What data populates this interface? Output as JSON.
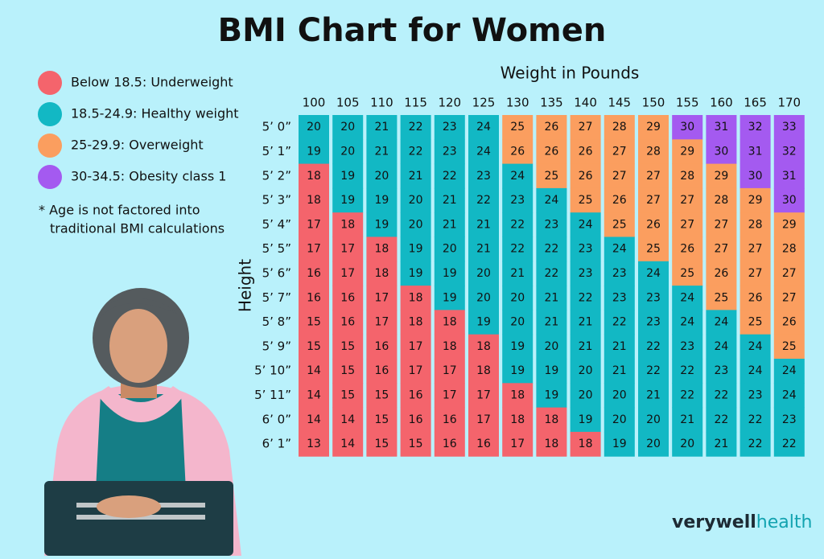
{
  "title": "BMI Chart for Women",
  "legend": [
    {
      "text": "Below 18.5: Underweight",
      "color": "#f4646c",
      "range": [
        null,
        18.5
      ]
    },
    {
      "text": "18.5-24.9: Healthy weight",
      "color": "#12b8c4",
      "range": [
        18.5,
        24.9
      ]
    },
    {
      "text": "25-29.9: Overweight",
      "color": "#fb9e5f",
      "range": [
        25,
        29.9
      ]
    },
    {
      "text": "30-34.5: Obesity class 1",
      "color": "#a45af0",
      "range": [
        30,
        34.5
      ]
    }
  ],
  "note": [
    "* Age is not factored into",
    "traditional BMI calculations"
  ],
  "table": {
    "x_label": "Weight in Pounds",
    "y_label": "Height",
    "columns": [
      100,
      105,
      110,
      115,
      120,
      125,
      130,
      135,
      140,
      145,
      150,
      155,
      160,
      165,
      170
    ],
    "rows": [
      {
        "height": "5’ 0”",
        "values": [
          20,
          20,
          21,
          22,
          23,
          24,
          25,
          26,
          27,
          28,
          29,
          30,
          31,
          32,
          33
        ]
      },
      {
        "height": "5’ 1”",
        "values": [
          19,
          20,
          21,
          22,
          23,
          24,
          26,
          26,
          26,
          27,
          28,
          29,
          30,
          31,
          32
        ]
      },
      {
        "height": "5’ 2”",
        "values": [
          18,
          19,
          20,
          21,
          22,
          23,
          24,
          25,
          26,
          27,
          27,
          28,
          29,
          30,
          31
        ]
      },
      {
        "height": "5’ 3”",
        "values": [
          18,
          19,
          19,
          20,
          21,
          22,
          23,
          24,
          25,
          26,
          27,
          27,
          28,
          29,
          30
        ]
      },
      {
        "height": "5’ 4”",
        "values": [
          17,
          18,
          19,
          20,
          21,
          21,
          22,
          23,
          24,
          25,
          26,
          27,
          27,
          28,
          29
        ]
      },
      {
        "height": "5’ 5”",
        "values": [
          17,
          17,
          18,
          19,
          20,
          21,
          22,
          22,
          23,
          24,
          25,
          26,
          27,
          27,
          28
        ]
      },
      {
        "height": "5’ 6”",
        "values": [
          16,
          17,
          18,
          19,
          19,
          20,
          21,
          22,
          23,
          23,
          24,
          25,
          26,
          27,
          27
        ]
      },
      {
        "height": "5’ 7”",
        "values": [
          16,
          16,
          17,
          18,
          19,
          20,
          20,
          21,
          22,
          23,
          23,
          24,
          25,
          26,
          27
        ]
      },
      {
        "height": "5’ 8”",
        "values": [
          15,
          16,
          17,
          18,
          18,
          19,
          20,
          21,
          21,
          22,
          23,
          24,
          24,
          25,
          26
        ]
      },
      {
        "height": "5’ 9”",
        "values": [
          15,
          15,
          16,
          17,
          18,
          18,
          19,
          20,
          21,
          21,
          22,
          23,
          24,
          24,
          25
        ]
      },
      {
        "height": "5’ 10”",
        "values": [
          14,
          15,
          16,
          17,
          17,
          18,
          19,
          19,
          20,
          21,
          22,
          22,
          23,
          24,
          24
        ]
      },
      {
        "height": "5’ 11”",
        "values": [
          14,
          15,
          15,
          16,
          17,
          17,
          18,
          19,
          20,
          20,
          21,
          22,
          22,
          23,
          24
        ]
      },
      {
        "height": "6’ 0”",
        "values": [
          14,
          14,
          15,
          16,
          16,
          17,
          18,
          18,
          19,
          20,
          20,
          21,
          22,
          22,
          23
        ]
      },
      {
        "height": "6’ 1”",
        "values": [
          13,
          14,
          15,
          15,
          16,
          16,
          17,
          18,
          18,
          19,
          20,
          20,
          21,
          22,
          22
        ]
      }
    ]
  },
  "brand": [
    "verywell",
    "health"
  ]
}
